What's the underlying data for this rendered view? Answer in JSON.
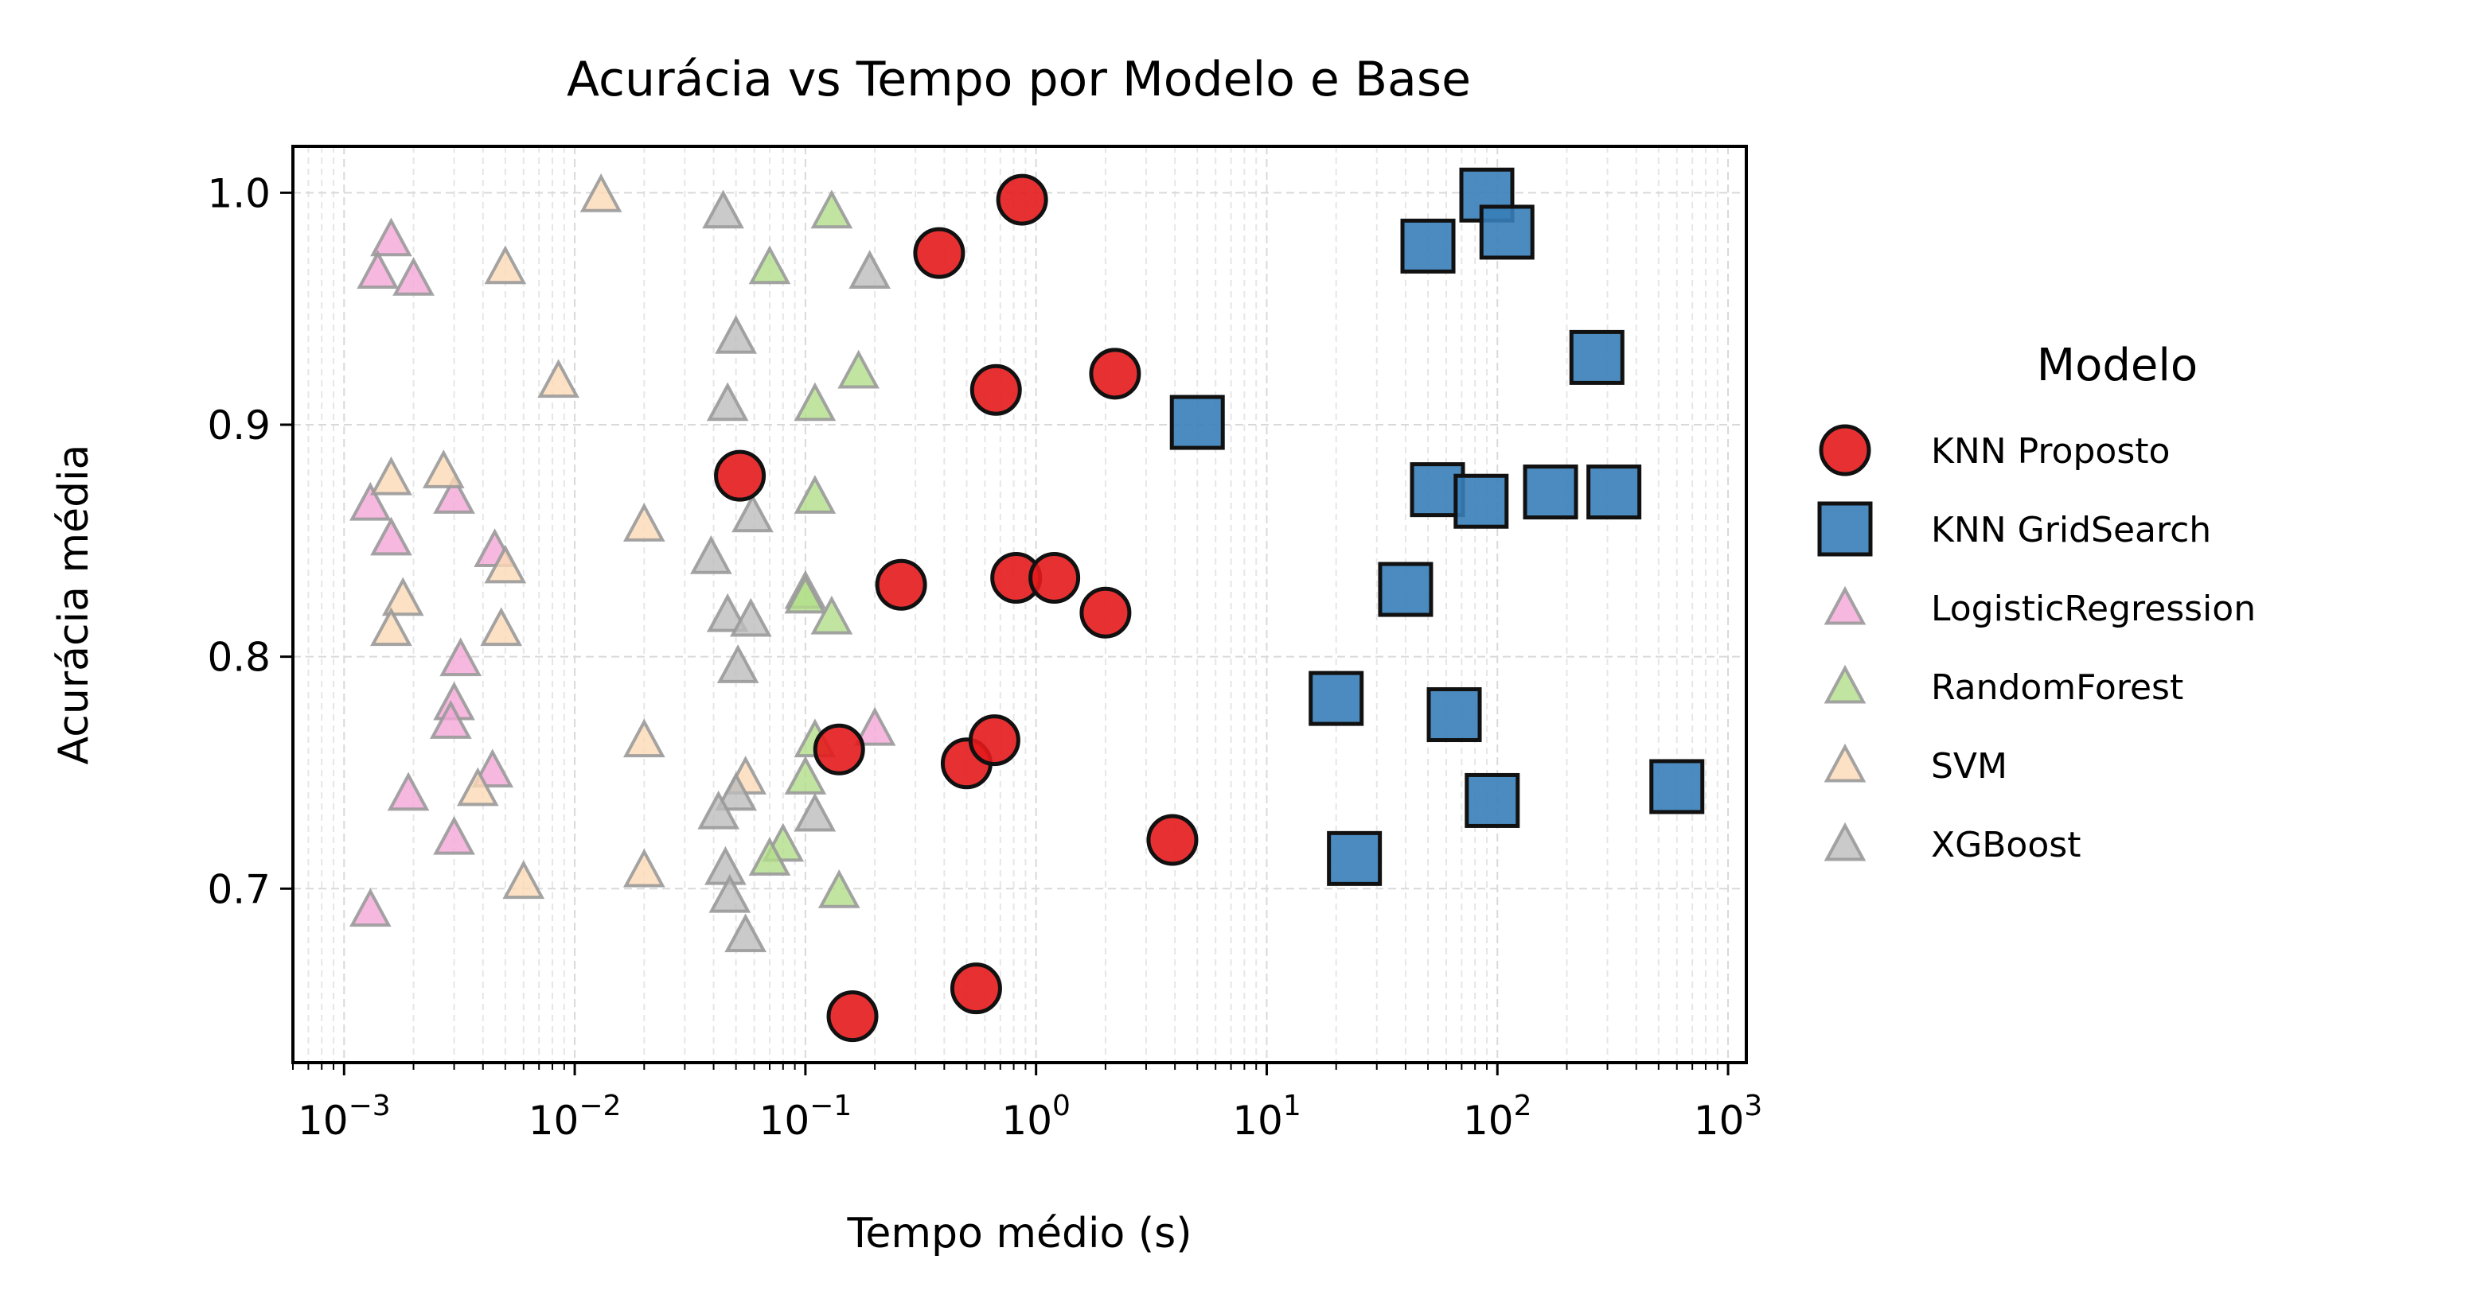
{
  "chart_data": {
    "type": "scatter",
    "title": "Acurácia vs Tempo por Modelo e Base",
    "xlabel": "Tempo médio (s)",
    "ylabel": "Acurácia média",
    "xscale": "log",
    "xlim": [
      0.0006,
      1200
    ],
    "ylim": [
      0.625,
      1.02
    ],
    "x_ticks": [
      0.001,
      0.01,
      0.1,
      1,
      10,
      100,
      1000
    ],
    "x_tick_labels": [
      {
        "base": "10",
        "exp": "−3"
      },
      {
        "base": "10",
        "exp": "−2"
      },
      {
        "base": "10",
        "exp": "−1"
      },
      {
        "base": "10",
        "exp": "0"
      },
      {
        "base": "10",
        "exp": "1"
      },
      {
        "base": "10",
        "exp": "2"
      },
      {
        "base": "10",
        "exp": "3"
      }
    ],
    "y_ticks": [
      0.7,
      0.8,
      0.9,
      1.0
    ],
    "y_tick_labels": [
      "0.7",
      "0.8",
      "0.9",
      "1.0"
    ],
    "grid": true,
    "legend": {
      "title": "Modelo",
      "placement": "outside-right"
    },
    "series": [
      {
        "name": "KNN Proposto",
        "marker": "circle",
        "color": "#e41a1c",
        "alpha": 0.9,
        "points": [
          [
            0.87,
            0.997
          ],
          [
            0.38,
            0.974
          ],
          [
            0.67,
            0.915
          ],
          [
            2.2,
            0.922
          ],
          [
            0.052,
            0.878
          ],
          [
            0.26,
            0.831
          ],
          [
            0.82,
            0.834
          ],
          [
            1.2,
            0.834
          ],
          [
            2.0,
            0.819
          ],
          [
            0.14,
            0.76
          ],
          [
            0.5,
            0.754
          ],
          [
            0.66,
            0.764
          ],
          [
            3.9,
            0.721
          ],
          [
            0.16,
            0.645
          ],
          [
            0.55,
            0.657
          ]
        ]
      },
      {
        "name": "KNN GridSearch",
        "marker": "square",
        "color": "#377eb8",
        "alpha": 0.9,
        "points": [
          [
            90,
            0.999
          ],
          [
            110,
            0.983
          ],
          [
            50,
            0.977
          ],
          [
            270,
            0.929
          ],
          [
            5,
            0.901
          ],
          [
            55,
            0.872
          ],
          [
            85,
            0.867
          ],
          [
            170,
            0.871
          ],
          [
            320,
            0.871
          ],
          [
            40,
            0.829
          ],
          [
            20,
            0.782
          ],
          [
            65,
            0.775
          ],
          [
            95,
            0.738
          ],
          [
            600,
            0.744
          ],
          [
            24,
            0.713
          ]
        ]
      },
      {
        "name": "LogisticRegression",
        "marker": "triangle",
        "color": "#f4a6d7",
        "alpha": 0.8,
        "points": [
          [
            0.0016,
            0.98
          ],
          [
            0.0014,
            0.966
          ],
          [
            0.002,
            0.963
          ],
          [
            0.0013,
            0.866
          ],
          [
            0.003,
            0.869
          ],
          [
            0.0016,
            0.851
          ],
          [
            0.0045,
            0.846
          ],
          [
            0.0032,
            0.799
          ],
          [
            0.003,
            0.78
          ],
          [
            0.0029,
            0.772
          ],
          [
            0.0019,
            0.741
          ],
          [
            0.0044,
            0.751
          ],
          [
            0.003,
            0.722
          ],
          [
            0.0013,
            0.691
          ],
          [
            0.2,
            0.769
          ]
        ]
      },
      {
        "name": "RandomForest",
        "marker": "triangle",
        "color": "#b2df8a",
        "alpha": 0.8,
        "points": [
          [
            0.13,
            0.992
          ],
          [
            0.07,
            0.968
          ],
          [
            0.17,
            0.923
          ],
          [
            0.11,
            0.909
          ],
          [
            0.11,
            0.869
          ],
          [
            0.1,
            0.828
          ],
          [
            0.1,
            0.826
          ],
          [
            0.13,
            0.817
          ],
          [
            0.11,
            0.764
          ],
          [
            0.1,
            0.748
          ],
          [
            0.08,
            0.719
          ],
          [
            0.07,
            0.713
          ],
          [
            0.14,
            0.699
          ]
        ]
      },
      {
        "name": "SVM",
        "marker": "triangle",
        "color": "#fdd9b5",
        "alpha": 0.8,
        "points": [
          [
            0.013,
            0.999
          ],
          [
            0.005,
            0.968
          ],
          [
            0.0085,
            0.919
          ],
          [
            0.0016,
            0.877
          ],
          [
            0.0027,
            0.88
          ],
          [
            0.02,
            0.857
          ],
          [
            0.005,
            0.839
          ],
          [
            0.0018,
            0.825
          ],
          [
            0.0016,
            0.812
          ],
          [
            0.0048,
            0.812
          ],
          [
            0.02,
            0.764
          ],
          [
            0.055,
            0.748
          ],
          [
            0.0038,
            0.743
          ],
          [
            0.02,
            0.708
          ],
          [
            0.006,
            0.703
          ]
        ]
      },
      {
        "name": "XGBoost",
        "marker": "triangle",
        "color": "#bdbdbd",
        "alpha": 0.8,
        "points": [
          [
            0.044,
            0.992
          ],
          [
            0.19,
            0.966
          ],
          [
            0.05,
            0.938
          ],
          [
            0.046,
            0.909
          ],
          [
            0.059,
            0.861
          ],
          [
            0.039,
            0.843
          ],
          [
            0.046,
            0.818
          ],
          [
            0.058,
            0.816
          ],
          [
            0.051,
            0.796
          ],
          [
            0.05,
            0.741
          ],
          [
            0.042,
            0.733
          ],
          [
            0.11,
            0.732
          ],
          [
            0.045,
            0.709
          ],
          [
            0.047,
            0.697
          ],
          [
            0.055,
            0.68
          ]
        ]
      }
    ]
  }
}
